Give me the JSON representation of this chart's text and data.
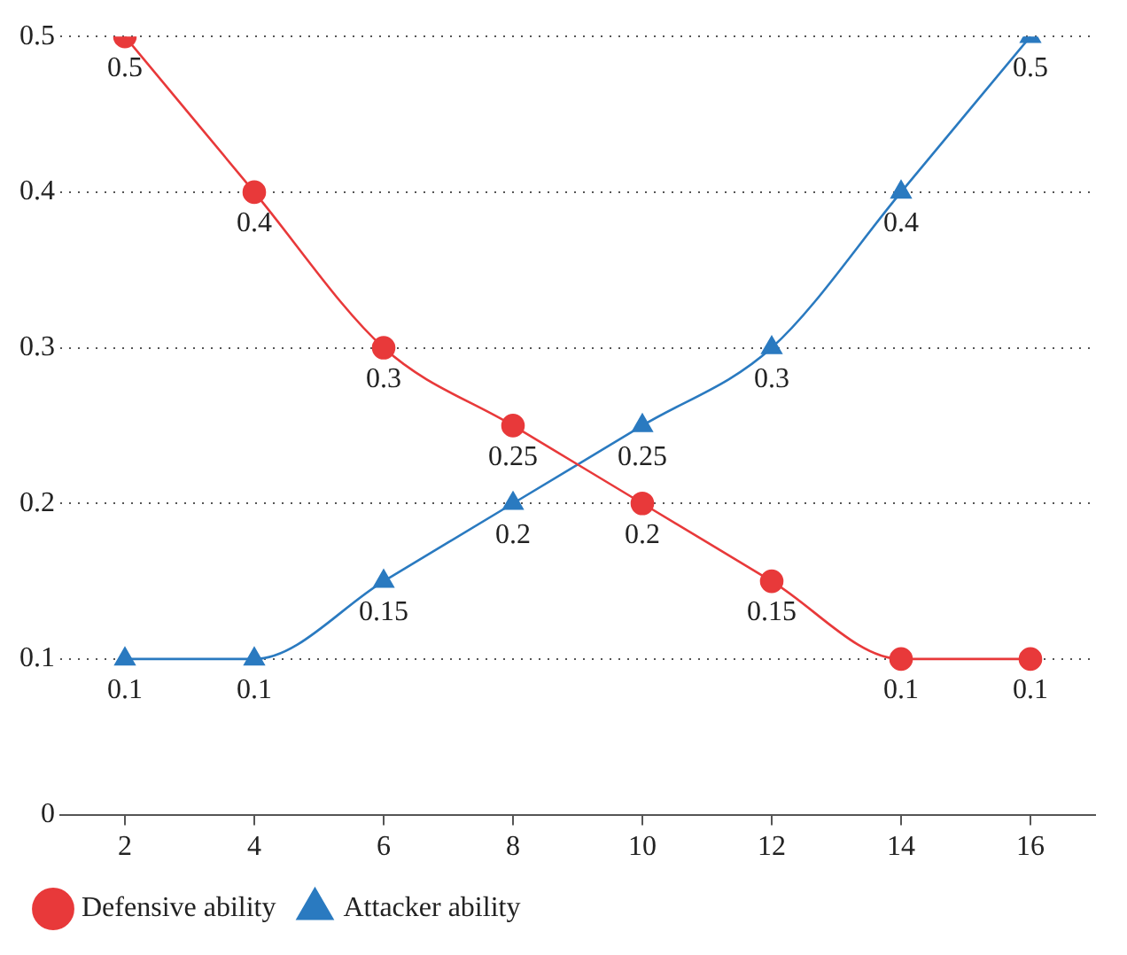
{
  "chart_data": {
    "type": "line",
    "x": [
      2,
      4,
      6,
      8,
      10,
      12,
      14,
      16
    ],
    "xlim": [
      1,
      17
    ],
    "xticks": [
      2,
      4,
      6,
      8,
      10,
      12,
      14,
      16
    ],
    "ylim": [
      0,
      0.5
    ],
    "yticks": [
      0,
      0.1,
      0.2,
      0.3,
      0.4,
      0.5
    ],
    "grid": "y",
    "legend": "bottom",
    "data_labels": true,
    "line_style": "solid",
    "series": [
      {
        "name": "Defensive ability",
        "color": "#e8393a",
        "marker": "circle",
        "values": [
          0.5,
          0.4,
          0.3,
          0.25,
          0.2,
          0.15,
          0.1,
          0.1
        ]
      },
      {
        "name": "Attacker ability",
        "color": "#2a7ac0",
        "marker": "triangle",
        "values": [
          0.1,
          0.1,
          0.15,
          0.2,
          0.25,
          0.3,
          0.4,
          0.5
        ]
      }
    ]
  }
}
